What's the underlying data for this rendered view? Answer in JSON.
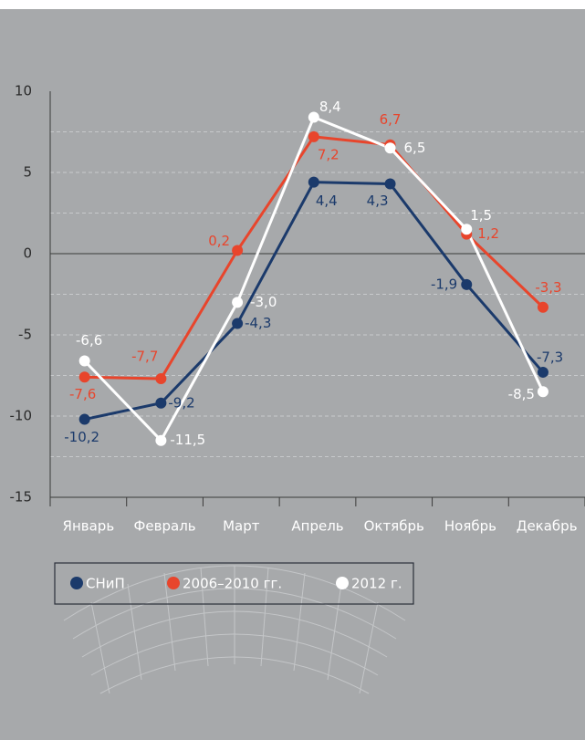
{
  "chart_data": {
    "type": "line",
    "categories": [
      "Январь",
      "Февраль",
      "Март",
      "Апрель",
      "Октябрь",
      "Ноябрь",
      "Декабрь"
    ],
    "series": [
      {
        "name": "СНиП",
        "color": "#1b3a6b",
        "values": [
          -10.2,
          -9.2,
          -4.3,
          4.4,
          4.3,
          -1.9,
          -7.3
        ],
        "value_labels": [
          "-10,2",
          "-9,2",
          "-4,3",
          "4,4",
          "4,3",
          "-1,9",
          "-7,3"
        ]
      },
      {
        "name": "2006–2010 гг.",
        "color": "#e8452c",
        "values": [
          -7.6,
          -7.7,
          0.2,
          7.2,
          6.7,
          1.2,
          -3.3
        ],
        "value_labels": [
          "-7,6",
          "-7,7",
          "0,2",
          "7,2",
          "6,7",
          "1,2",
          "-3,3"
        ]
      },
      {
        "name": "2012 г.",
        "color": "#ffffff",
        "values": [
          -6.6,
          -11.5,
          -3.0,
          8.4,
          6.5,
          1.5,
          -8.5
        ],
        "value_labels": [
          "-6,6",
          "-11,5",
          "-3,0",
          "8,4",
          "6,5",
          "1,5",
          "-8,5"
        ]
      }
    ],
    "ylim": [
      -15,
      10
    ],
    "yticks": [
      10,
      5,
      0,
      -5,
      -10,
      -15
    ],
    "minor_yticks": [
      7.5,
      2.5,
      -2.5,
      -7.5,
      -12.5
    ],
    "grid": true,
    "legend": "bottom"
  }
}
